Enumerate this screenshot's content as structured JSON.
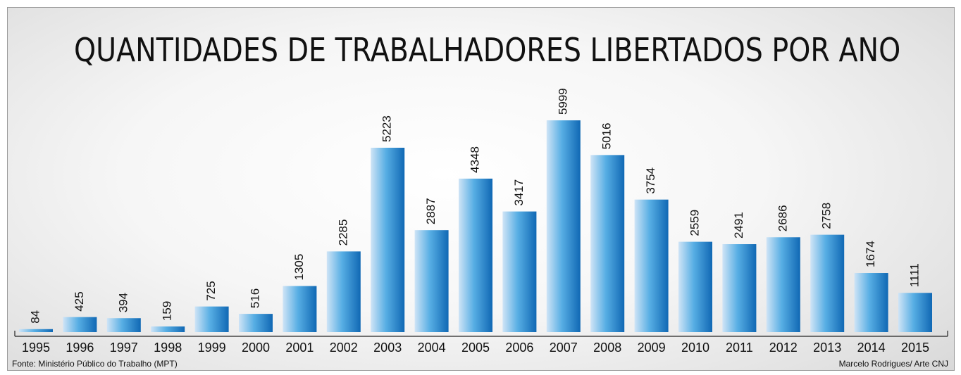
{
  "title": "QUANTIDADES DE TRABALHADORES LIBERTADOS POR ANO",
  "source": "Fonte: Ministério Público do Trabalho (MPT)",
  "credit": "Marcelo Rodrigues/ Arte CNJ",
  "colors": {
    "bar_light": "#cfe4f6",
    "bar_mid": "#57aee4",
    "bar_dark": "#1068b4"
  },
  "chart_data": {
    "type": "bar",
    "title": "QUANTIDADES DE TRABALHADORES LIBERTADOS POR ANO",
    "categories": [
      "1995",
      "1996",
      "1997",
      "1998",
      "1999",
      "2000",
      "2001",
      "2002",
      "2003",
      "2004",
      "2005",
      "2006",
      "2007",
      "2008",
      "2009",
      "2010",
      "2011",
      "2012",
      "2013",
      "2014",
      "2015"
    ],
    "values": [
      84,
      425,
      394,
      159,
      725,
      516,
      1305,
      2285,
      5223,
      2887,
      4348,
      3417,
      5999,
      5016,
      3754,
      2559,
      2491,
      2686,
      2758,
      1674,
      1111
    ],
    "value_labels": [
      "84",
      "425",
      "394",
      "159",
      "725",
      "516",
      "1305",
      "2285",
      "5223",
      "2887",
      "4348",
      "3417",
      "5999",
      "5016",
      "3754",
      "2559",
      "2491",
      "2686",
      "2758",
      "1674",
      "1111"
    ],
    "xlabel": "",
    "ylabel": "",
    "ylim": [
      0,
      6000
    ],
    "grid": false,
    "legend": "none"
  }
}
